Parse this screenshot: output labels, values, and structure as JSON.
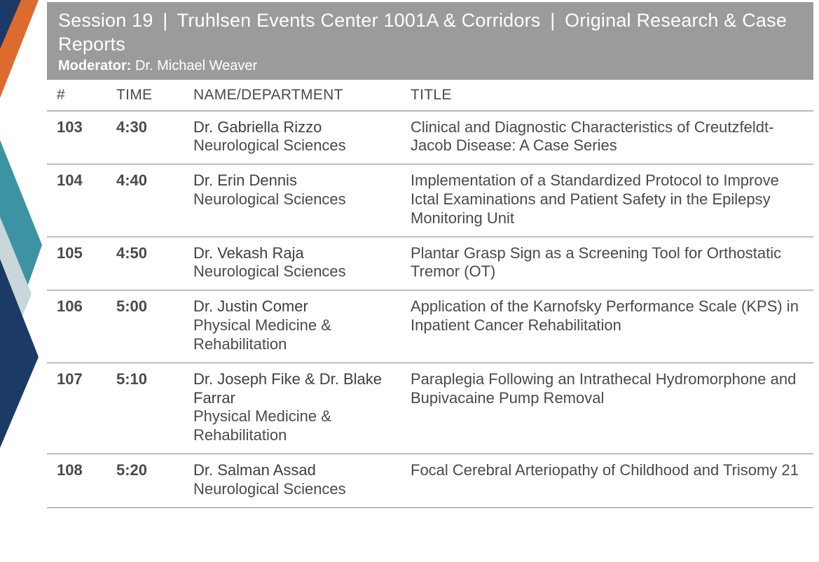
{
  "decoration": {
    "orange": "#dd6b2d",
    "navy": "#1b3a66",
    "teal": "#3d93a3",
    "light": "#c9d7da"
  },
  "header": {
    "bg_color": "#9a9b9d",
    "session_label": "Session 19",
    "location": "Truhlsen Events Center 1001A & Corridors",
    "track": "Original Research & Case Reports",
    "moderator_label": "Moderator:",
    "moderator_name": "Dr. Michael Weaver"
  },
  "columns": {
    "num": "#",
    "time": "TIME",
    "name": "NAME/DEPARTMENT",
    "title": "TITLE"
  },
  "rows": [
    {
      "num": "103",
      "time": "4:30",
      "presenters": "Dr. Gabriella Rizzo",
      "department": "Neurological Sciences",
      "title": "Clinical and Diagnostic Characteristics of Creutzfeldt-Jacob Disease: A Case Series"
    },
    {
      "num": "104",
      "time": "4:40",
      "presenters": "Dr. Erin Dennis",
      "department": "Neurological Sciences",
      "title": "Implementation of a Standardized Protocol to Improve Ictal Examinations and Patient Safety in the Epilepsy Monitoring Unit"
    },
    {
      "num": "105",
      "time": "4:50",
      "presenters": "Dr. Vekash Raja",
      "department": "Neurological Sciences",
      "title": "Plantar Grasp Sign as a Screening Tool for Orthostatic Tremor (OT)"
    },
    {
      "num": "106",
      "time": "5:00",
      "presenters": "Dr. Justin Comer",
      "department": "Physical Medicine & Rehabilitation",
      "title": "Application of the Karnofsky Performance Scale (KPS) in Inpatient Cancer Rehabilitation"
    },
    {
      "num": "107",
      "time": "5:10",
      "presenters": "Dr. Joseph Fike & Dr. Blake Farrar",
      "department": "Physical Medicine & Rehabilitation",
      "title": "Paraplegia Following an Intrathecal Hydromorphone and Bupivacaine Pump Removal"
    },
    {
      "num": "108",
      "time": "5:20",
      "presenters": "Dr. Salman Assad",
      "department": "Neurological Sciences",
      "title": "Focal Cerebral Arteriopathy of Childhood and Trisomy 21"
    }
  ]
}
